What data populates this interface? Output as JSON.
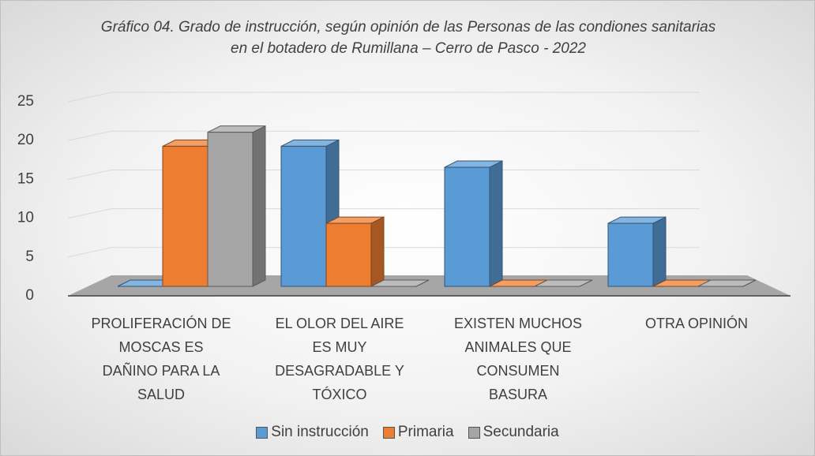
{
  "chart_data": {
    "type": "bar3d",
    "title": "Gráfico 04. Grado de instrucción, según opinión de las Personas de las condiones sanitarias en el botadero de Rumillana – Cerro de Pasco - 2022",
    "categories": [
      "PROLIFERACIÓN DE MOSCAS ES DAÑINO PARA LA SALUD",
      "EL OLOR DEL AIRE ES MUY DESAGRADABLE Y TÓXICO",
      "EXISTEN MUCHOS ANIMALES QUE CONSUMEN BASURA",
      "OTRA OPINIÓN"
    ],
    "series": [
      {
        "name": "Sin instrucción",
        "color": "#5b9bd5",
        "values": [
          0,
          20,
          17,
          9
        ]
      },
      {
        "name": "Primaria",
        "color": "#ed7d31",
        "values": [
          20,
          9,
          0,
          0
        ]
      },
      {
        "name": "Secundaria",
        "color": "#a5a5a5",
        "values": [
          22,
          0,
          0,
          0
        ]
      }
    ],
    "ylim": [
      0,
      25
    ],
    "yticks": [
      0,
      5,
      10,
      15,
      20,
      25
    ],
    "grid": true,
    "legend": "bottom"
  }
}
